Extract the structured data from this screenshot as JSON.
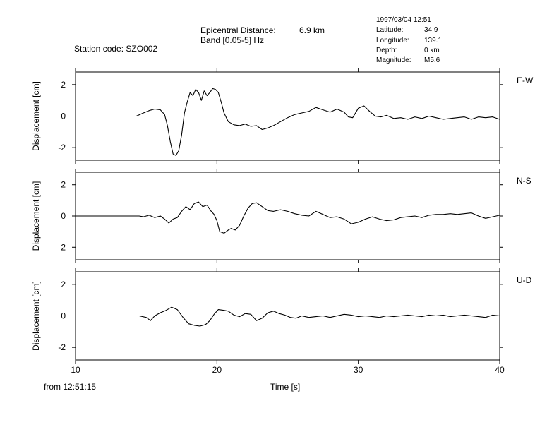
{
  "header": {
    "station_label": "Station code:",
    "station_code": "SZO002",
    "epicentral_label": "Epicentral Distance:",
    "epicentral_value": "6.9 km",
    "band_label": "Band [0.05-5] Hz"
  },
  "event": {
    "datetime": "1997/03/04 12:51",
    "latitude_label": "Latitude:",
    "latitude": "34.9",
    "longitude_label": "Longitude:",
    "longitude": "139.1",
    "depth_label": "Depth:",
    "depth": "0 km",
    "magnitude_label": "Magnitude:",
    "magnitude": "M5.6"
  },
  "footer": {
    "from_text": "from 12:51:15",
    "xlabel": "Time [s]"
  },
  "chart_data": {
    "type": "line",
    "xlabel": "Time [s]",
    "ylabel": "Displacement [cm]",
    "xlim": [
      10,
      40
    ],
    "xticks": [
      "10",
      "20",
      "30",
      "40"
    ],
    "ylim": [
      -2.8,
      2.8
    ],
    "yticks": [
      "2",
      "0",
      "-2"
    ],
    "grid": false,
    "series": [
      {
        "name": "E-W",
        "x": [
          10,
          14.3,
          14.8,
          15.2,
          15.6,
          16,
          16.3,
          16.5,
          16.7,
          16.9,
          17.1,
          17.3,
          17.5,
          17.7,
          17.9,
          18.1,
          18.3,
          18.5,
          18.7,
          18.9,
          19.1,
          19.3,
          19.5,
          19.7,
          19.9,
          20.1,
          20.3,
          20.5,
          20.8,
          21.2,
          21.6,
          22,
          22.4,
          22.8,
          23.2,
          23.6,
          24,
          24.5,
          25,
          25.5,
          26,
          26.5,
          27,
          27.5,
          28,
          28.5,
          29,
          29.3,
          29.6,
          30,
          30.4,
          30.8,
          31.2,
          31.6,
          32,
          32.5,
          33,
          33.5,
          34,
          34.5,
          35,
          35.5,
          36,
          36.5,
          37,
          37.5,
          38,
          38.5,
          39,
          39.5,
          40
        ],
        "y": [
          0,
          0,
          0.2,
          0.35,
          0.45,
          0.4,
          0.1,
          -0.6,
          -1.6,
          -2.4,
          -2.5,
          -2.2,
          -1.2,
          0.2,
          0.9,
          1.5,
          1.3,
          1.7,
          1.5,
          1.0,
          1.6,
          1.3,
          1.5,
          1.75,
          1.7,
          1.5,
          0.9,
          0.2,
          -0.35,
          -0.55,
          -0.6,
          -0.5,
          -0.65,
          -0.6,
          -0.85,
          -0.75,
          -0.6,
          -0.35,
          -0.1,
          0.1,
          0.2,
          0.3,
          0.55,
          0.4,
          0.25,
          0.45,
          0.25,
          -0.05,
          -0.1,
          0.5,
          0.65,
          0.3,
          0.0,
          -0.05,
          0.05,
          -0.15,
          -0.1,
          -0.2,
          -0.05,
          -0.15,
          0.0,
          -0.1,
          -0.2,
          -0.15,
          -0.1,
          -0.05,
          -0.2,
          -0.05,
          -0.1,
          -0.05,
          -0.2
        ]
      },
      {
        "name": "N-S",
        "x": [
          10,
          14.5,
          14.8,
          15.2,
          15.6,
          16,
          16.3,
          16.6,
          16.9,
          17.2,
          17.5,
          17.8,
          18.1,
          18.4,
          18.7,
          19,
          19.3,
          19.6,
          19.8,
          20,
          20.2,
          20.5,
          20.8,
          21,
          21.3,
          21.6,
          21.9,
          22.2,
          22.5,
          22.8,
          23.2,
          23.6,
          24,
          24.5,
          25,
          25.5,
          26,
          26.5,
          27,
          27.5,
          28,
          28.5,
          29,
          29.5,
          30,
          30.5,
          31,
          31.5,
          32,
          32.5,
          33,
          33.5,
          34,
          34.5,
          35,
          35.5,
          36,
          36.5,
          37,
          37.5,
          38,
          38.5,
          39,
          39.5,
          40
        ],
        "y": [
          0,
          0,
          -0.05,
          0.05,
          -0.1,
          0.0,
          -0.2,
          -0.45,
          -0.2,
          -0.1,
          0.3,
          0.6,
          0.4,
          0.8,
          0.9,
          0.6,
          0.7,
          0.3,
          0.1,
          -0.3,
          -1.0,
          -1.1,
          -0.9,
          -0.8,
          -0.9,
          -0.6,
          0.0,
          0.5,
          0.8,
          0.85,
          0.6,
          0.35,
          0.3,
          0.4,
          0.3,
          0.15,
          0.05,
          0.0,
          0.3,
          0.1,
          -0.1,
          -0.05,
          -0.2,
          -0.5,
          -0.4,
          -0.2,
          -0.05,
          -0.2,
          -0.3,
          -0.25,
          -0.1,
          -0.05,
          0.0,
          -0.1,
          0.05,
          0.1,
          0.1,
          0.15,
          0.1,
          0.15,
          0.2,
          0.0,
          -0.15,
          -0.05,
          0.05
        ]
      },
      {
        "name": "U-D",
        "x": [
          10,
          14.5,
          15,
          15.3,
          15.6,
          16,
          16.4,
          16.8,
          17.2,
          17.6,
          18,
          18.4,
          18.8,
          19.2,
          19.5,
          19.8,
          20.1,
          20.5,
          20.8,
          21.2,
          21.6,
          22,
          22.4,
          22.8,
          23.2,
          23.6,
          24,
          24.4,
          24.8,
          25.2,
          25.6,
          26,
          26.5,
          27,
          27.5,
          28,
          28.5,
          29,
          29.5,
          30,
          30.5,
          31,
          31.5,
          32,
          32.5,
          33,
          33.5,
          34,
          34.5,
          35,
          35.5,
          36,
          36.5,
          37,
          37.5,
          38,
          38.5,
          39,
          39.5,
          40
        ],
        "y": [
          0,
          0,
          -0.1,
          -0.3,
          0.0,
          0.2,
          0.35,
          0.55,
          0.4,
          -0.1,
          -0.5,
          -0.6,
          -0.65,
          -0.55,
          -0.3,
          0.1,
          0.4,
          0.35,
          0.3,
          0.05,
          -0.05,
          0.15,
          0.1,
          -0.3,
          -0.15,
          0.2,
          0.3,
          0.15,
          0.05,
          -0.1,
          -0.15,
          0.0,
          -0.1,
          -0.05,
          0.0,
          -0.1,
          0.0,
          0.1,
          0.05,
          -0.05,
          0.0,
          -0.05,
          -0.1,
          0.0,
          -0.05,
          0.0,
          0.05,
          0.0,
          -0.05,
          0.05,
          0.0,
          0.05,
          -0.05,
          0.0,
          0.05,
          0.0,
          -0.05,
          -0.1,
          0.05,
          0.0
        ]
      }
    ]
  }
}
